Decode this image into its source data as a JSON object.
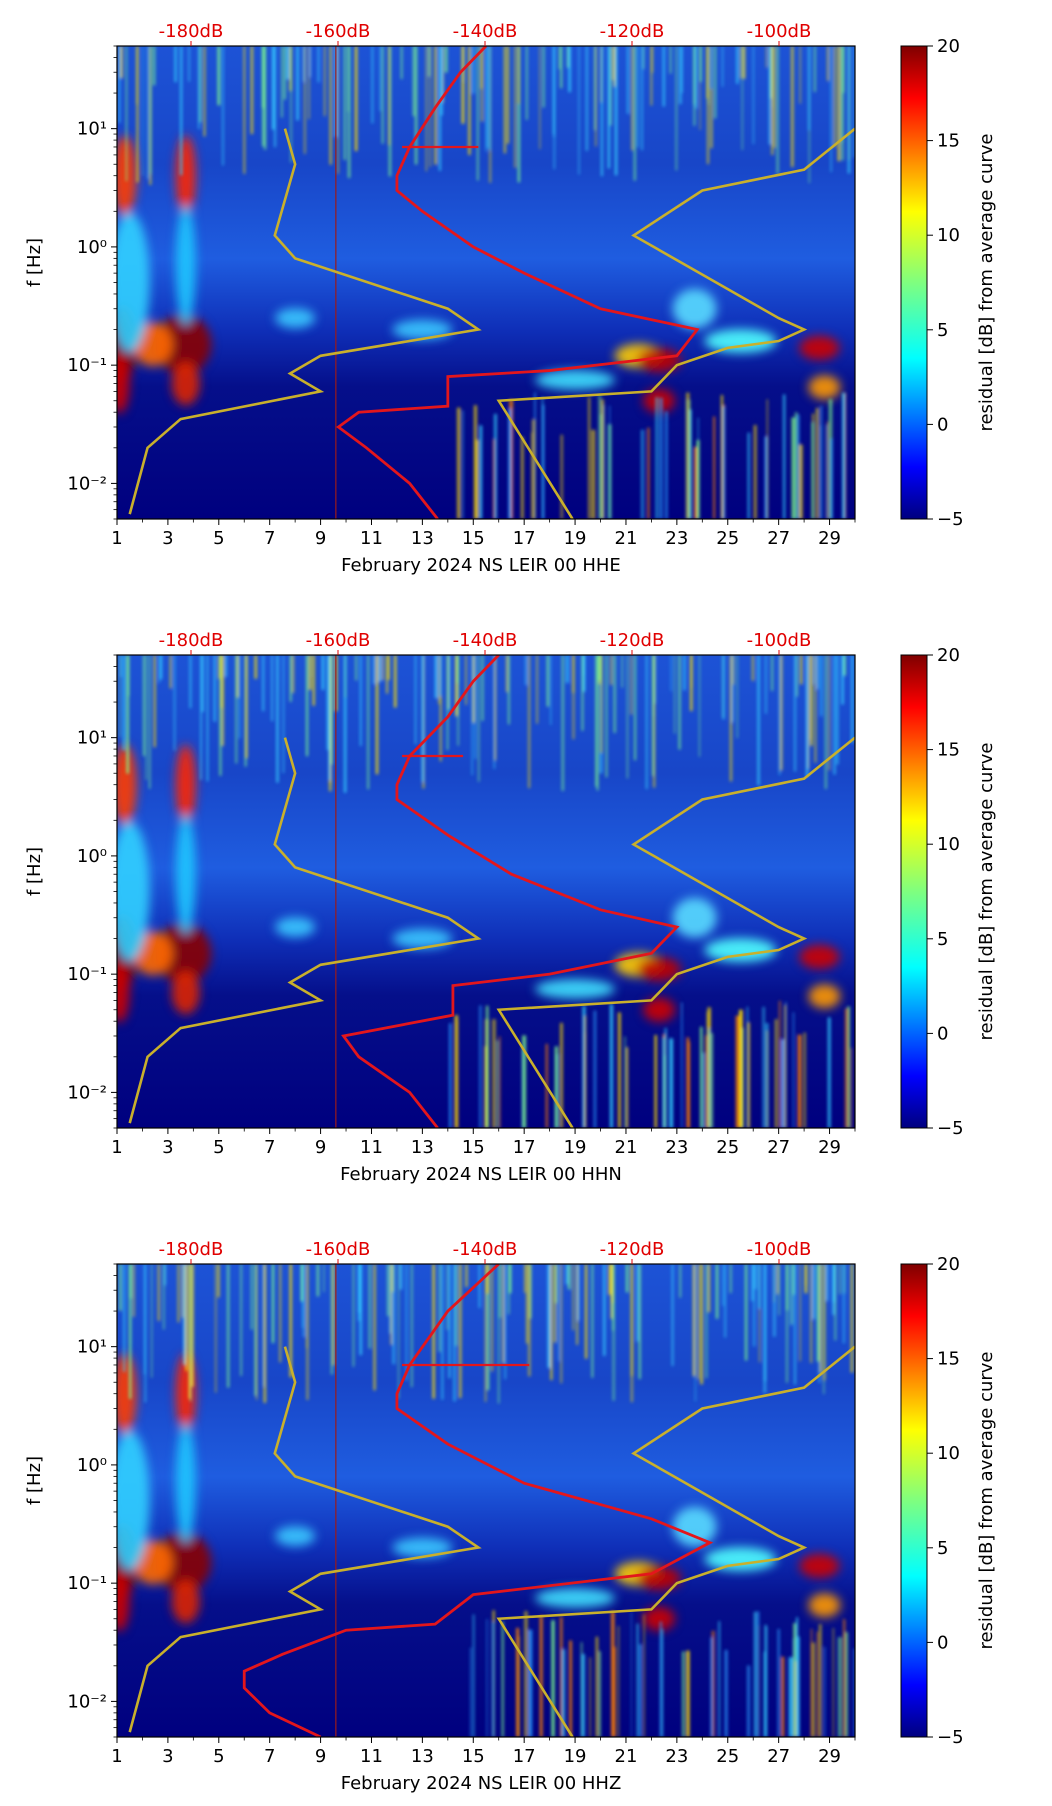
{
  "chart_data": [
    {
      "type": "heatmap",
      "title": "",
      "xlabel": "February 2024 NS LEIR 00 HHE",
      "ylabel": "f [Hz]",
      "x_ticks": [
        "1",
        "3",
        "5",
        "7",
        "9",
        "11",
        "13",
        "15",
        "17",
        "19",
        "21",
        "23",
        "25",
        "27",
        "29"
      ],
      "y_tick_labels": [
        "10⁻²",
        "10⁻¹",
        "10⁰",
        "10¹"
      ],
      "xlim": [
        1,
        30
      ],
      "ylim": [
        0.005,
        50
      ],
      "top_axis_labels": [
        "-180dB",
        "-160dB",
        "-140dB",
        "-120dB",
        "-100dB"
      ],
      "colorbar": {
        "label": "residual [dB] from average curve",
        "ticks": [
          "20",
          "15",
          "10",
          "5",
          "0",
          "−5"
        ],
        "range": [
          -5,
          20
        ]
      }
    },
    {
      "type": "heatmap",
      "title": "",
      "xlabel": "February 2024 NS LEIR 00 HHN",
      "ylabel": "f [Hz]",
      "x_ticks": [
        "1",
        "3",
        "5",
        "7",
        "9",
        "11",
        "13",
        "15",
        "17",
        "19",
        "21",
        "23",
        "25",
        "27",
        "29"
      ],
      "y_tick_labels": [
        "10⁻²",
        "10⁻¹",
        "10⁰",
        "10¹"
      ],
      "xlim": [
        1,
        30
      ],
      "ylim": [
        0.005,
        50
      ],
      "top_axis_labels": [
        "-180dB",
        "-160dB",
        "-140dB",
        "-120dB",
        "-100dB"
      ],
      "colorbar": {
        "label": "residual [dB] from average curve",
        "ticks": [
          "20",
          "15",
          "10",
          "5",
          "0",
          "−5"
        ],
        "range": [
          -5,
          20
        ]
      }
    },
    {
      "type": "heatmap",
      "title": "",
      "xlabel": "February 2024 NS LEIR 00 HHZ",
      "ylabel": "f [Hz]",
      "x_ticks": [
        "1",
        "3",
        "5",
        "7",
        "9",
        "11",
        "13",
        "15",
        "17",
        "19",
        "21",
        "23",
        "25",
        "27",
        "29"
      ],
      "y_tick_labels": [
        "10⁻²",
        "10⁻¹",
        "10⁰",
        "10¹"
      ],
      "xlim": [
        1,
        30
      ],
      "ylim": [
        0.005,
        50
      ],
      "top_axis_labels": [
        "-180dB",
        "-160dB",
        "-140dB",
        "-120dB",
        "-100dB"
      ],
      "colorbar": {
        "label": "residual [dB] from average curve",
        "ticks": [
          "20",
          "15",
          "10",
          "5",
          "0",
          "−5"
        ],
        "range": [
          -5,
          20
        ]
      }
    }
  ]
}
